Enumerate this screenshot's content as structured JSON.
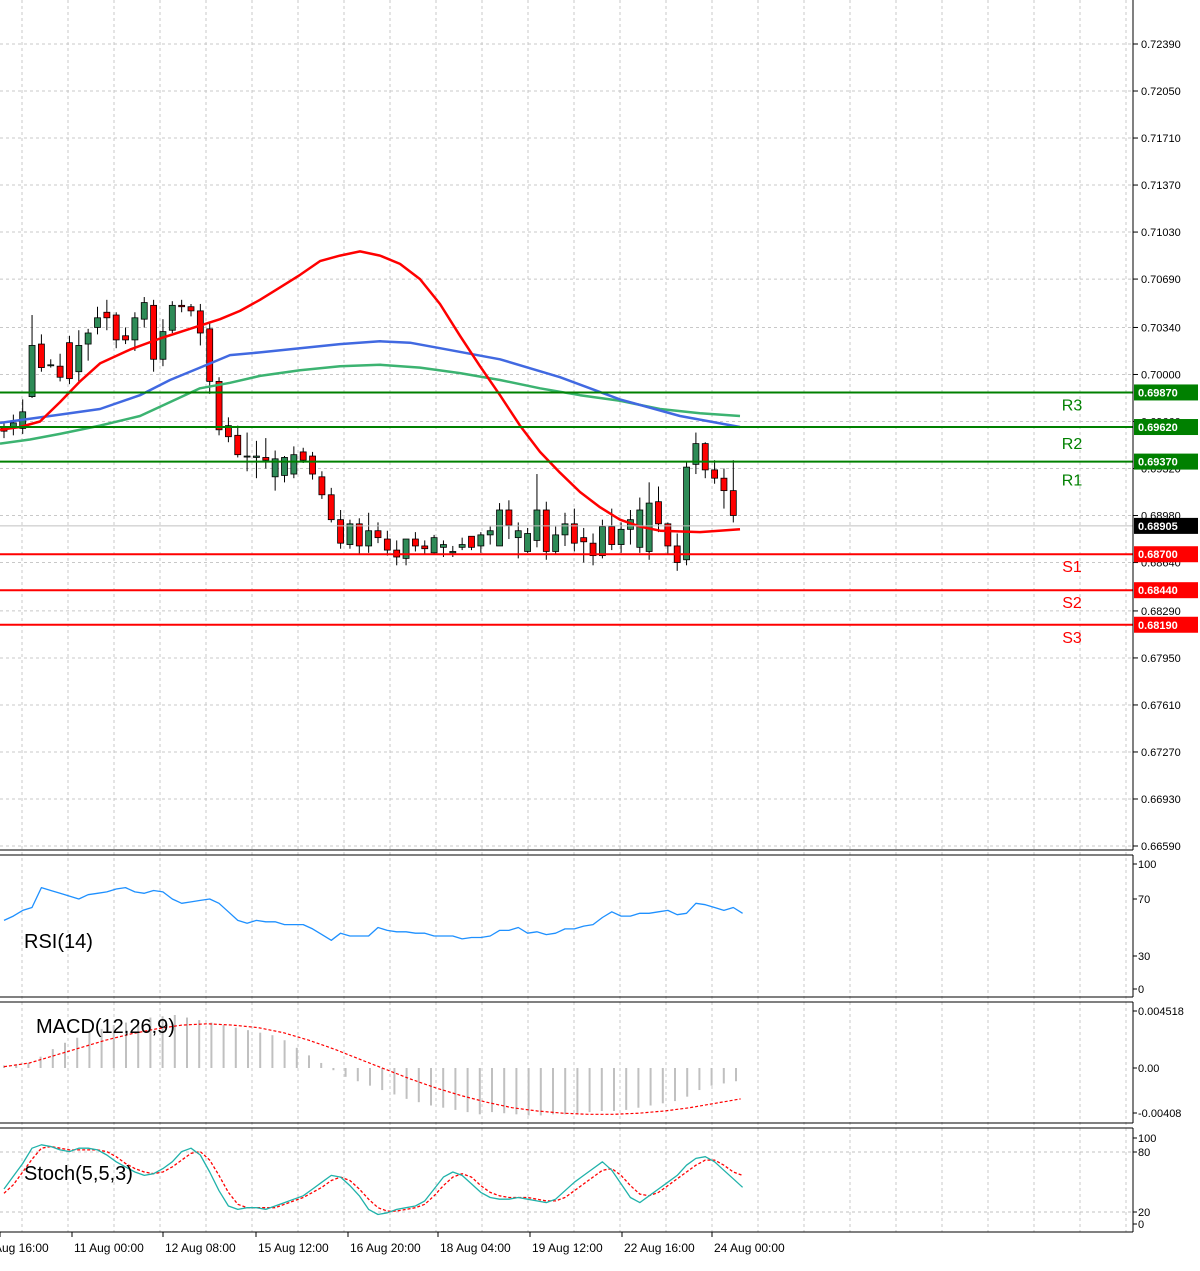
{
  "chart_data": {
    "type": "candlestick",
    "symbol_hint": "",
    "price_panel": {
      "y_ticks": [
        "0.72390",
        "0.72050",
        "0.71710",
        "0.71370",
        "0.71030",
        "0.70690",
        "0.70340",
        "0.70000",
        "0.69660",
        "0.69320",
        "0.68980",
        "0.68640",
        "0.68290",
        "0.67950",
        "0.67610",
        "0.67270",
        "0.66930",
        "0.66590"
      ],
      "ylim": [
        0.6659,
        0.7239
      ],
      "current_price": "0.68905",
      "levels": [
        {
          "name": "R3",
          "value": 0.6987,
          "label": "0.69870",
          "color": "#008000"
        },
        {
          "name": "R2",
          "value": 0.6962,
          "label": "0.69620",
          "color": "#008000"
        },
        {
          "name": "R1",
          "value": 0.6937,
          "label": "0.69370",
          "color": "#008000"
        },
        {
          "name": "S1",
          "value": 0.687,
          "label": "0.68700",
          "color": "#ff0000"
        },
        {
          "name": "S2",
          "value": 0.6844,
          "label": "0.68440",
          "color": "#ff0000"
        },
        {
          "name": "S3",
          "value": 0.6819,
          "label": "0.68190",
          "color": "#ff0000"
        }
      ],
      "candles": [
        {
          "o": 0.6961,
          "h": 0.6966,
          "l": 0.6954,
          "c": 0.6959
        },
        {
          "o": 0.6962,
          "h": 0.6971,
          "l": 0.6956,
          "c": 0.6965
        },
        {
          "o": 0.6961,
          "h": 0.6982,
          "l": 0.6957,
          "c": 0.6973
        },
        {
          "o": 0.6984,
          "h": 0.7043,
          "l": 0.6983,
          "c": 0.7021
        },
        {
          "o": 0.7022,
          "h": 0.7029,
          "l": 0.7002,
          "c": 0.7005
        },
        {
          "o": 0.7007,
          "h": 0.7011,
          "l": 0.7005,
          "c": 0.7007
        },
        {
          "o": 0.7006,
          "h": 0.7015,
          "l": 0.6995,
          "c": 0.6998
        },
        {
          "o": 0.7023,
          "h": 0.7028,
          "l": 0.6993,
          "c": 0.6997
        },
        {
          "o": 0.7002,
          "h": 0.7032,
          "l": 0.6995,
          "c": 0.7021
        },
        {
          "o": 0.7022,
          "h": 0.7033,
          "l": 0.701,
          "c": 0.703
        },
        {
          "o": 0.7034,
          "h": 0.7049,
          "l": 0.7029,
          "c": 0.7041
        },
        {
          "o": 0.7045,
          "h": 0.7054,
          "l": 0.7032,
          "c": 0.7041
        },
        {
          "o": 0.7043,
          "h": 0.7045,
          "l": 0.7019,
          "c": 0.7025
        },
        {
          "o": 0.7028,
          "h": 0.7034,
          "l": 0.7022,
          "c": 0.7025
        },
        {
          "o": 0.7025,
          "h": 0.7045,
          "l": 0.7017,
          "c": 0.7041
        },
        {
          "o": 0.704,
          "h": 0.7056,
          "l": 0.7034,
          "c": 0.7052
        },
        {
          "o": 0.705,
          "h": 0.7054,
          "l": 0.7002,
          "c": 0.7011
        },
        {
          "o": 0.7011,
          "h": 0.704,
          "l": 0.7006,
          "c": 0.7031
        },
        {
          "o": 0.7032,
          "h": 0.7053,
          "l": 0.703,
          "c": 0.705
        },
        {
          "o": 0.705,
          "h": 0.7054,
          "l": 0.7045,
          "c": 0.7049
        },
        {
          "o": 0.7049,
          "h": 0.7051,
          "l": 0.7042,
          "c": 0.7046
        },
        {
          "o": 0.7046,
          "h": 0.7051,
          "l": 0.7021,
          "c": 0.703
        },
        {
          "o": 0.7033,
          "h": 0.7038,
          "l": 0.6986,
          "c": 0.6995
        },
        {
          "o": 0.6995,
          "h": 0.6998,
          "l": 0.6956,
          "c": 0.696
        },
        {
          "o": 0.6963,
          "h": 0.6969,
          "l": 0.6951,
          "c": 0.6955
        },
        {
          "o": 0.6956,
          "h": 0.6963,
          "l": 0.694,
          "c": 0.6942
        },
        {
          "o": 0.6941,
          "h": 0.6958,
          "l": 0.693,
          "c": 0.6941
        },
        {
          "o": 0.694,
          "h": 0.6952,
          "l": 0.6925,
          "c": 0.6941
        },
        {
          "o": 0.694,
          "h": 0.6954,
          "l": 0.6932,
          "c": 0.6938
        },
        {
          "o": 0.6926,
          "h": 0.6945,
          "l": 0.6916,
          "c": 0.6939
        },
        {
          "o": 0.6927,
          "h": 0.6941,
          "l": 0.6922,
          "c": 0.694
        },
        {
          "o": 0.6928,
          "h": 0.6948,
          "l": 0.6925,
          "c": 0.6942
        },
        {
          "o": 0.6944,
          "h": 0.6947,
          "l": 0.6936,
          "c": 0.6938
        },
        {
          "o": 0.6941,
          "h": 0.6944,
          "l": 0.6924,
          "c": 0.6928
        },
        {
          "o": 0.6926,
          "h": 0.693,
          "l": 0.691,
          "c": 0.6913
        },
        {
          "o": 0.6913,
          "h": 0.6918,
          "l": 0.6893,
          "c": 0.6895
        },
        {
          "o": 0.6895,
          "h": 0.6902,
          "l": 0.6874,
          "c": 0.6878
        },
        {
          "o": 0.6877,
          "h": 0.6895,
          "l": 0.6874,
          "c": 0.6892
        },
        {
          "o": 0.6892,
          "h": 0.6896,
          "l": 0.687,
          "c": 0.6876
        },
        {
          "o": 0.6876,
          "h": 0.69,
          "l": 0.6871,
          "c": 0.6887
        },
        {
          "o": 0.6887,
          "h": 0.6893,
          "l": 0.6878,
          "c": 0.6882
        },
        {
          "o": 0.6881,
          "h": 0.6887,
          "l": 0.6869,
          "c": 0.6873
        },
        {
          "o": 0.6873,
          "h": 0.688,
          "l": 0.6862,
          "c": 0.6868
        },
        {
          "o": 0.6867,
          "h": 0.6881,
          "l": 0.6862,
          "c": 0.6881
        },
        {
          "o": 0.6881,
          "h": 0.6886,
          "l": 0.6872,
          "c": 0.6876
        },
        {
          "o": 0.6876,
          "h": 0.688,
          "l": 0.687,
          "c": 0.6874
        },
        {
          "o": 0.6871,
          "h": 0.6884,
          "l": 0.687,
          "c": 0.6882
        },
        {
          "o": 0.6875,
          "h": 0.688,
          "l": 0.6868,
          "c": 0.6877
        },
        {
          "o": 0.6871,
          "h": 0.6876,
          "l": 0.6868,
          "c": 0.6872
        },
        {
          "o": 0.6875,
          "h": 0.6882,
          "l": 0.6873,
          "c": 0.6877
        },
        {
          "o": 0.6883,
          "h": 0.6883,
          "l": 0.6873,
          "c": 0.6875
        },
        {
          "o": 0.6876,
          "h": 0.6886,
          "l": 0.6871,
          "c": 0.6884
        },
        {
          "o": 0.6884,
          "h": 0.689,
          "l": 0.6877,
          "c": 0.6887
        },
        {
          "o": 0.6876,
          "h": 0.6907,
          "l": 0.6876,
          "c": 0.6902
        },
        {
          "o": 0.6902,
          "h": 0.6909,
          "l": 0.6881,
          "c": 0.6891
        },
        {
          "o": 0.6882,
          "h": 0.6893,
          "l": 0.6867,
          "c": 0.6887
        },
        {
          "o": 0.6872,
          "h": 0.6889,
          "l": 0.6871,
          "c": 0.6885
        },
        {
          "o": 0.688,
          "h": 0.6928,
          "l": 0.6875,
          "c": 0.6902
        },
        {
          "o": 0.6902,
          "h": 0.6908,
          "l": 0.6866,
          "c": 0.6872
        },
        {
          "o": 0.6872,
          "h": 0.689,
          "l": 0.687,
          "c": 0.6884
        },
        {
          "o": 0.6884,
          "h": 0.69,
          "l": 0.6876,
          "c": 0.6892
        },
        {
          "o": 0.6892,
          "h": 0.6903,
          "l": 0.6872,
          "c": 0.6878
        },
        {
          "o": 0.6882,
          "h": 0.6889,
          "l": 0.6864,
          "c": 0.6879
        },
        {
          "o": 0.6878,
          "h": 0.6885,
          "l": 0.6862,
          "c": 0.6869
        },
        {
          "o": 0.6869,
          "h": 0.6895,
          "l": 0.6867,
          "c": 0.689
        },
        {
          "o": 0.689,
          "h": 0.6903,
          "l": 0.6873,
          "c": 0.6877
        },
        {
          "o": 0.6877,
          "h": 0.6893,
          "l": 0.6871,
          "c": 0.6888
        },
        {
          "o": 0.6888,
          "h": 0.6902,
          "l": 0.6877,
          "c": 0.6895
        },
        {
          "o": 0.6875,
          "h": 0.6911,
          "l": 0.6871,
          "c": 0.6902
        },
        {
          "o": 0.6872,
          "h": 0.6922,
          "l": 0.6866,
          "c": 0.6907
        },
        {
          "o": 0.6908,
          "h": 0.6919,
          "l": 0.6886,
          "c": 0.6892
        },
        {
          "o": 0.6892,
          "h": 0.6893,
          "l": 0.687,
          "c": 0.6876
        },
        {
          "o": 0.6876,
          "h": 0.6885,
          "l": 0.6858,
          "c": 0.6864
        },
        {
          "o": 0.6866,
          "h": 0.6937,
          "l": 0.6862,
          "c": 0.6933
        },
        {
          "o": 0.6935,
          "h": 0.6958,
          "l": 0.6928,
          "c": 0.695
        },
        {
          "o": 0.695,
          "h": 0.6951,
          "l": 0.6925,
          "c": 0.6931
        },
        {
          "o": 0.6931,
          "h": 0.6938,
          "l": 0.6921,
          "c": 0.6925
        },
        {
          "o": 0.6925,
          "h": 0.6932,
          "l": 0.6903,
          "c": 0.6916
        },
        {
          "o": 0.6916,
          "h": 0.6938,
          "l": 0.6893,
          "c": 0.6898
        }
      ],
      "ma_red": [
        0.696,
        0.6962,
        0.6966,
        0.698,
        0.6995,
        0.7008,
        0.7018,
        0.7026,
        0.7033,
        0.704,
        0.7046,
        0.7054,
        0.7063,
        0.7072,
        0.7082,
        0.7086,
        0.7089,
        0.7086,
        0.708,
        0.7069,
        0.7051,
        0.7028,
        0.7006,
        0.6985,
        0.6963,
        0.6944,
        0.6929,
        0.6915,
        0.6904,
        0.6895,
        0.689,
        0.6887,
        0.6886,
        0.6888
      ],
      "ma_blue": [
        0.6965,
        0.6968,
        0.6971,
        0.6975,
        0.6985,
        0.6996,
        0.7005,
        0.7014,
        0.7016,
        0.7019,
        0.7022,
        0.7024,
        0.7023,
        0.7019,
        0.7011,
        0.6998,
        0.6982,
        0.697,
        0.6962
      ],
      "ma_green": [
        0.695,
        0.6953,
        0.6957,
        0.6963,
        0.697,
        0.698,
        0.699,
        0.6994,
        0.6999,
        0.7003,
        0.7006,
        0.7007,
        0.7005,
        0.7001,
        0.6996,
        0.699,
        0.6985,
        0.6981,
        0.6975,
        0.6972,
        0.697
      ],
      "ma_red_x": [
        0,
        20,
        40,
        60,
        80,
        100,
        130,
        160,
        190,
        220,
        240,
        260,
        280,
        300,
        320,
        340,
        360,
        380,
        400,
        420,
        440,
        460,
        480,
        500,
        520,
        540,
        560,
        580,
        600,
        620,
        640,
        660,
        700,
        740
      ],
      "ma_blue_x": [
        0,
        30,
        60,
        100,
        140,
        170,
        200,
        230,
        260,
        300,
        340,
        380,
        410,
        440,
        500,
        560,
        620,
        680,
        740
      ],
      "ma_green_x": [
        0,
        30,
        60,
        100,
        140,
        170,
        200,
        230,
        260,
        300,
        340,
        380,
        420,
        460,
        500,
        540,
        580,
        620,
        660,
        700,
        740
      ]
    },
    "x_ticks": [
      "Aug 16:00",
      "11 Aug 00:00",
      "12 Aug 08:00",
      "15 Aug 12:00",
      "16 Aug 20:00",
      "18 Aug 04:00",
      "19 Aug 12:00",
      "22 Aug 16:00",
      "24 Aug 00:00"
    ],
    "rsi_panel": {
      "label": "RSI(14)",
      "y_ticks": [
        "100",
        "70",
        "30",
        "0"
      ],
      "ylim": [
        0,
        100
      ],
      "values": [
        55,
        58,
        62,
        64,
        78,
        76,
        74,
        72,
        70,
        73,
        74,
        75,
        77,
        78,
        75,
        74,
        76,
        75,
        70,
        67,
        68,
        69,
        70,
        67,
        61,
        55,
        53,
        55,
        54,
        54,
        52,
        52,
        52,
        49,
        45,
        41,
        46,
        44,
        44,
        44,
        50,
        48,
        47,
        47,
        46,
        46,
        44,
        44,
        44,
        42,
        43,
        43,
        44,
        48,
        48,
        50,
        46,
        47,
        45,
        46,
        49,
        49,
        51,
        52,
        57,
        61,
        58,
        58,
        60,
        60,
        61,
        62,
        59,
        60,
        67,
        66,
        64,
        62,
        64,
        60
      ]
    },
    "macd_panel": {
      "label": "MACD(12,26,9)",
      "y_ticks": [
        "0.004518",
        "0.00",
        "-0.00408"
      ],
      "ylim": [
        -0.0045,
        0.0048
      ],
      "histogram": [
        0.0002,
        0.0003,
        0.0004,
        0.0009,
        0.0015,
        0.002,
        0.0024,
        0.0028,
        0.0031,
        0.0034,
        0.0036,
        0.0038,
        0.004,
        0.0041,
        0.0042,
        0.004,
        0.0038,
        0.0036,
        0.0034,
        0.0032,
        0.003,
        0.0028,
        0.0026,
        0.0022,
        0.0016,
        0.001,
        0.0004,
        -0.0002,
        -0.0008,
        -0.0012,
        -0.0016,
        -0.002,
        -0.0024,
        -0.0028,
        -0.0031,
        -0.0034,
        -0.0036,
        -0.0038,
        -0.004,
        -0.0042,
        -0.004,
        -0.0041,
        -0.0042,
        -0.0043,
        -0.0043,
        -0.0042,
        -0.0042,
        -0.0041,
        -0.004,
        -0.0039,
        -0.0039,
        -0.0038,
        -0.0036,
        -0.0034,
        -0.0032,
        -0.003,
        -0.0026,
        -0.002,
        -0.0016,
        -0.0014,
        -0.0012
      ],
      "signal": [
        0.0001,
        0.0004,
        0.001,
        0.0016,
        0.0022,
        0.0027,
        0.0031,
        0.0034,
        0.0035,
        0.0034,
        0.0032,
        0.0028,
        0.0022,
        0.0015,
        0.0007,
        -0.0001,
        -0.001,
        -0.0018,
        -0.0025,
        -0.0031,
        -0.0036,
        -0.0039,
        -0.0041,
        -0.0042,
        -0.0042,
        -0.0041,
        -0.0039,
        -0.0036,
        -0.0032,
        -0.0028
      ]
    },
    "stoch_panel": {
      "label": "Stoch(5,5,3)",
      "y_ticks": [
        "100",
        "80",
        "20",
        "0"
      ],
      "ylim": [
        0,
        100
      ],
      "main": [
        40,
        55,
        70,
        88,
        92,
        90,
        86,
        84,
        88,
        88,
        86,
        80,
        72,
        66,
        60,
        56,
        58,
        64,
        72,
        84,
        88,
        80,
        60,
        38,
        20,
        16,
        18,
        18,
        16,
        20,
        24,
        28,
        32,
        40,
        48,
        56,
        54,
        44,
        32,
        16,
        10,
        12,
        16,
        18,
        20,
        26,
        40,
        54,
        60,
        56,
        46,
        36,
        30,
        28,
        28,
        30,
        28,
        26,
        24,
        28,
        38,
        48,
        56,
        64,
        72,
        62,
        46,
        30,
        24,
        32,
        40,
        48,
        56,
        68,
        76,
        78,
        72,
        62,
        52,
        42
      ],
      "signal": [
        35,
        45,
        60,
        75,
        88,
        90,
        88,
        86,
        86,
        86,
        86,
        84,
        78,
        70,
        64,
        60,
        58,
        60,
        66,
        74,
        82,
        84,
        74,
        56,
        36,
        22,
        18,
        18,
        18,
        18,
        22,
        26,
        30,
        36,
        42,
        50,
        54,
        50,
        40,
        28,
        18,
        14,
        14,
        16,
        18,
        22,
        32,
        44,
        54,
        58,
        54,
        44,
        36,
        32,
        30,
        30,
        30,
        28,
        26,
        26,
        30,
        38,
        46,
        54,
        62,
        64,
        56,
        44,
        34,
        32,
        36,
        44,
        52,
        60,
        68,
        74,
        74,
        68,
        60,
        56
      ]
    }
  }
}
